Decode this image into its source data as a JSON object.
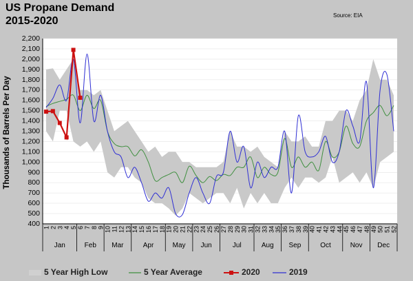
{
  "header": {
    "title_line1": "US Propane Demand",
    "title_line2": "2015-2020",
    "source": "Source: EIA"
  },
  "colors": {
    "background": "#c6c6c6",
    "plot_bg": "#ffffff",
    "band": "#c9c9c9",
    "avg": "#3f8f3f",
    "y2020": "#cc1111",
    "y2019": "#2f2fd4",
    "grid": "#e4e4e4"
  },
  "chart_data": {
    "type": "line",
    "title": "US Propane Demand 2015-2020",
    "ylabel": "Thousands of Barrels Per Day",
    "xlabel": "",
    "ylim": [
      400,
      2200
    ],
    "yticks": [
      400,
      500,
      600,
      700,
      800,
      900,
      1000,
      1100,
      1200,
      1300,
      1400,
      1500,
      1600,
      1700,
      1800,
      1900,
      2000,
      2100,
      2200
    ],
    "ytick_labels": [
      "400",
      "500",
      "600",
      "700",
      "800",
      "900",
      "1,000",
      "1,100",
      "1,200",
      "1,300",
      "1,400",
      "1,500",
      "1,600",
      "1,700",
      "1,800",
      "1,900",
      "2,000",
      "2,100",
      "2,200"
    ],
    "x_weeks": [
      1,
      2,
      3,
      4,
      5,
      6,
      7,
      8,
      9,
      10,
      11,
      12,
      13,
      14,
      15,
      16,
      17,
      18,
      19,
      20,
      21,
      22,
      23,
      24,
      25,
      26,
      27,
      28,
      29,
      30,
      31,
      32,
      33,
      34,
      35,
      36,
      37,
      38,
      39,
      40,
      41,
      42,
      43,
      44,
      45,
      46,
      47,
      48,
      49,
      50,
      51,
      52
    ],
    "months": [
      "Jan",
      "Feb",
      "Mar",
      "Apr",
      "May",
      "Jun",
      "Jul",
      "Aug",
      "Sep",
      "Oct",
      "Nov",
      "Dec"
    ],
    "month_bounds": [
      0,
      5,
      9,
      13,
      18,
      22,
      26,
      31,
      35,
      39,
      44,
      48,
      52
    ],
    "band_high": [
      1900,
      1910,
      1800,
      1900,
      2000,
      1700,
      1700,
      1650,
      1700,
      1500,
      1300,
      1350,
      1400,
      1300,
      1200,
      1100,
      1150,
      1050,
      1100,
      1100,
      1000,
      1000,
      950,
      950,
      950,
      950,
      1000,
      1300,
      1150,
      1150,
      1100,
      1150,
      1050,
      1000,
      950,
      1300,
      1200,
      1200,
      1250,
      1150,
      1150,
      1400,
      1400,
      1500,
      1500,
      1400,
      1600,
      1700,
      2000,
      1800,
      1800,
      1650
    ],
    "band_low": [
      1300,
      1200,
      1500,
      1500,
      1200,
      1150,
      1200,
      1100,
      1200,
      900,
      850,
      950,
      950,
      850,
      800,
      650,
      600,
      600,
      550,
      480,
      550,
      700,
      650,
      600,
      650,
      700,
      700,
      600,
      750,
      550,
      700,
      600,
      700,
      600,
      600,
      750,
      850,
      750,
      850,
      850,
      800,
      850,
      1050,
      800,
      850,
      900,
      800,
      900,
      750,
      1000,
      1050,
      1100
    ],
    "series": [
      {
        "name": "5 Year High Low",
        "type": "band"
      },
      {
        "name": "5 Year Average",
        "values": [
          1540,
          1570,
          1590,
          1610,
          1650,
          1500,
          1650,
          1520,
          1600,
          1300,
          1180,
          1150,
          1150,
          1060,
          1120,
          1000,
          820,
          850,
          880,
          900,
          800,
          960,
          870,
          800,
          860,
          820,
          880,
          870,
          950,
          950,
          1050,
          850,
          950,
          880,
          900,
          1230,
          950,
          1050,
          950,
          1000,
          920,
          1200,
          1050,
          1100,
          1350,
          1180,
          1150,
          1400,
          1480,
          1550,
          1450,
          1550
        ]
      },
      {
        "name": "2020",
        "values": [
          1490,
          1495,
          1380,
          1240,
          2090,
          1625
        ]
      },
      {
        "name": "2019",
        "values": [
          1530,
          1620,
          1750,
          1600,
          2000,
          1380,
          2050,
          1400,
          1650,
          1300,
          1100,
          1050,
          850,
          950,
          800,
          620,
          700,
          650,
          750,
          500,
          490,
          700,
          850,
          700,
          600,
          860,
          900,
          1300,
          1000,
          1150,
          750,
          1000,
          850,
          950,
          950,
          1300,
          700,
          1450,
          1100,
          1050,
          1100,
          1250,
          1000,
          1100,
          1500,
          1350,
          1200,
          1780,
          750,
          1700,
          1850,
          1300
        ]
      }
    ],
    "legend": {
      "position": "bottom",
      "entries": [
        "5 Year High Low",
        "5 Year Average",
        "2020",
        "2019"
      ]
    },
    "grid": true
  }
}
